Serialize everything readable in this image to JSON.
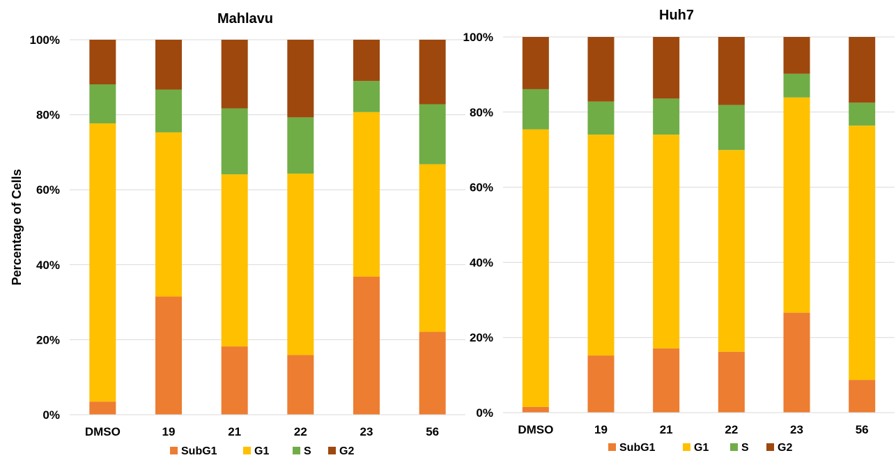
{
  "chart_data": [
    {
      "type": "bar",
      "stacked": true,
      "title": "Mahlavu",
      "xlabel": "",
      "ylabel": "Percentage of Cells",
      "ylim": [
        0,
        100
      ],
      "yticks": [
        "0%",
        "20%",
        "40%",
        "60%",
        "80%",
        "100%"
      ],
      "grid": true,
      "legend_position": "bottom",
      "categories": [
        "DMSO",
        "19",
        "21",
        "22",
        "23",
        "56"
      ],
      "series": [
        {
          "name": "SubG1",
          "color": "#ED7D31",
          "values": [
            3.5,
            31.5,
            18.2,
            15.9,
            36.8,
            22.1
          ]
        },
        {
          "name": "G1",
          "color": "#FFC000",
          "values": [
            74.2,
            43.8,
            45.9,
            48.4,
            43.9,
            44.7
          ]
        },
        {
          "name": "S",
          "color": "#70AD47",
          "values": [
            10.4,
            11.4,
            17.6,
            15.0,
            8.3,
            16.0
          ]
        },
        {
          "name": "G2",
          "color": "#9E480E",
          "values": [
            11.9,
            13.3,
            18.3,
            20.7,
            11.0,
            17.2
          ]
        }
      ]
    },
    {
      "type": "bar",
      "stacked": true,
      "title": "Huh7",
      "xlabel": "",
      "ylabel": "",
      "ylim": [
        0,
        100
      ],
      "yticks": [
        "0%",
        "20%",
        "40%",
        "60%",
        "80%",
        "100%"
      ],
      "grid": true,
      "legend_position": "bottom",
      "categories": [
        "DMSO",
        "19",
        "21",
        "22",
        "23",
        "56"
      ],
      "series": [
        {
          "name": "SubG1",
          "color": "#ED7D31",
          "values": [
            1.5,
            15.2,
            17.1,
            16.2,
            26.6,
            8.7
          ]
        },
        {
          "name": "G1",
          "color": "#FFC000",
          "values": [
            73.9,
            58.8,
            56.9,
            53.7,
            57.3,
            67.7
          ]
        },
        {
          "name": "S",
          "color": "#70AD47",
          "values": [
            10.7,
            8.8,
            9.6,
            12.0,
            6.3,
            6.1
          ]
        },
        {
          "name": "G2",
          "color": "#9E480E",
          "values": [
            13.9,
            17.2,
            16.4,
            18.1,
            9.8,
            17.5
          ]
        }
      ]
    }
  ]
}
